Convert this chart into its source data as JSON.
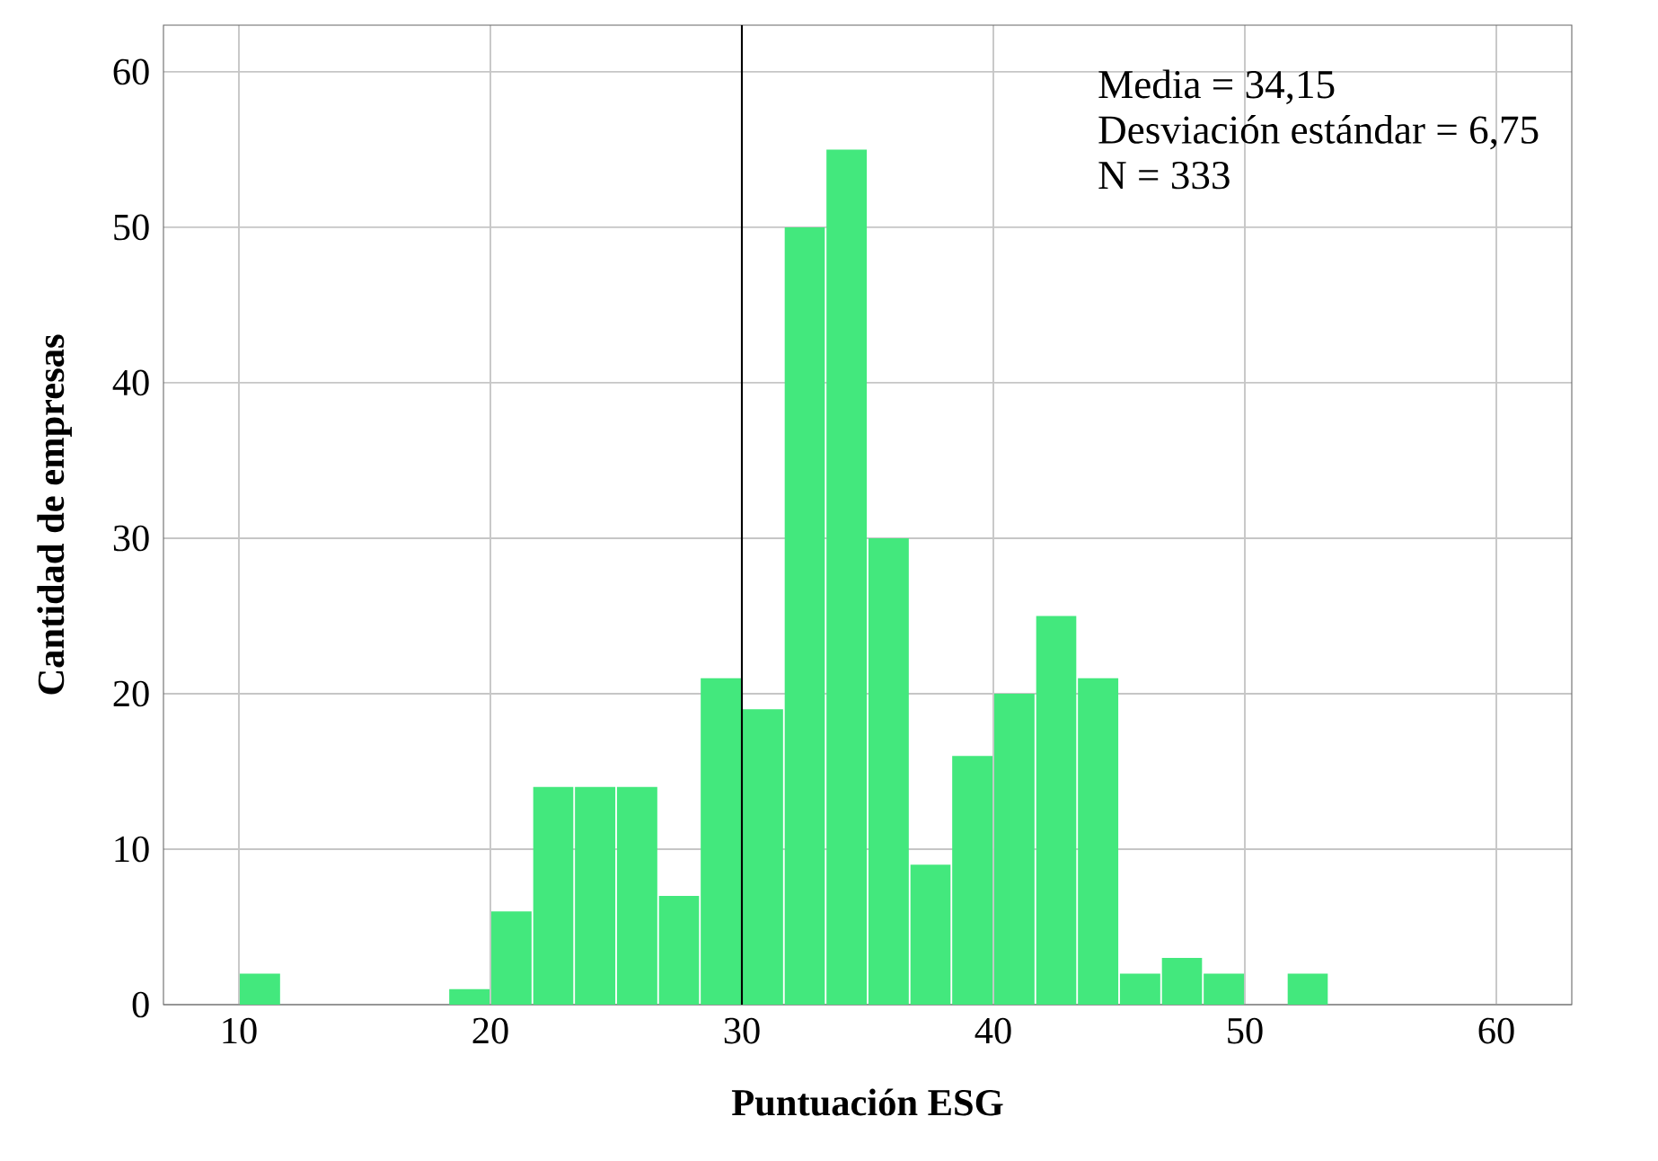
{
  "chart_data": {
    "type": "histogram",
    "xlabel": "Puntuación ESG",
    "ylabel": "Cantidad de empresas",
    "bins": [
      10,
      11.67,
      13.33,
      15,
      16.67,
      18.33,
      20,
      21.67,
      23.33,
      25,
      26.67,
      28.33,
      30,
      31.67,
      33.33,
      35,
      36.67,
      38.33,
      40,
      41.67,
      43.33,
      45,
      46.67,
      48.33,
      50,
      51.67,
      53.33
    ],
    "values": [
      2,
      0,
      0,
      0,
      0,
      1,
      6,
      14,
      14,
      14,
      7,
      21,
      19,
      50,
      55,
      30,
      9,
      16,
      20,
      25,
      21,
      2,
      3,
      2,
      0,
      2
    ],
    "color": "#43e87d",
    "xlim": [
      7,
      63
    ],
    "ylim": [
      0,
      63
    ],
    "xticks": [
      10,
      20,
      30,
      40,
      50,
      60
    ],
    "yticks": [
      0,
      10,
      20,
      30,
      40,
      50,
      60
    ],
    "grid": true,
    "ref_lines": [
      {
        "axis": "x",
        "value": 30,
        "color": "#000000"
      }
    ],
    "annotations": [
      "Media = 34,15",
      "Desviación estándar = 6,75",
      "N = 333"
    ]
  }
}
